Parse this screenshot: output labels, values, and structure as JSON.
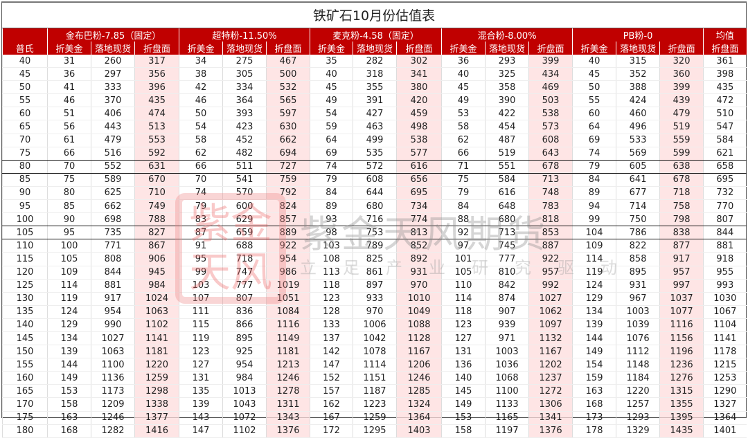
{
  "title": "铁矿石10月份估值表",
  "header": {
    "groups": [
      "金布巴粉-7.85（固定）",
      "超特粉-11.50%",
      "麦克粉-4.58（固定）",
      "混合粉-8.00%",
      "PB粉-0",
      "均值"
    ],
    "first_col": "普氏",
    "sub_cols": [
      "折美金",
      "落地现货",
      "折盘面"
    ],
    "avg_sub": "折盘面"
  },
  "colors": {
    "header_bg": "#c00000",
    "highlight": "#fde4e4"
  },
  "watermark": {
    "seal": "紫金天风",
    "name": "紫金天风期货",
    "slogan": "立足产业研究驱动"
  },
  "rows": [
    [
      "40",
      "31",
      "260",
      "317",
      "34",
      "275",
      "467",
      "35",
      "282",
      "302",
      "36",
      "293",
      "399",
      "40",
      "315",
      "320",
      "361"
    ],
    [
      "45",
      "36",
      "297",
      "356",
      "38",
      "305",
      "500",
      "40",
      "318",
      "341",
      "40",
      "325",
      "434",
      "45",
      "352",
      "360",
      "398"
    ],
    [
      "50",
      "41",
      "333",
      "396",
      "42",
      "334",
      "532",
      "45",
      "355",
      "380",
      "45",
      "358",
      "469",
      "50",
      "388",
      "399",
      "435"
    ],
    [
      "55",
      "46",
      "370",
      "435",
      "46",
      "364",
      "565",
      "49",
      "391",
      "420",
      "49",
      "390",
      "503",
      "55",
      "424",
      "439",
      "472"
    ],
    [
      "60",
      "51",
      "406",
      "474",
      "50",
      "393",
      "597",
      "54",
      "427",
      "459",
      "53",
      "422",
      "538",
      "60",
      "460",
      "479",
      "510"
    ],
    [
      "65",
      "56",
      "443",
      "513",
      "54",
      "423",
      "630",
      "59",
      "463",
      "498",
      "58",
      "454",
      "573",
      "64",
      "496",
      "519",
      "547"
    ],
    [
      "70",
      "61",
      "479",
      "553",
      "58",
      "452",
      "662",
      "64",
      "499",
      "538",
      "62",
      "487",
      "608",
      "69",
      "533",
      "559",
      "584"
    ],
    [
      "75",
      "66",
      "516",
      "592",
      "62",
      "482",
      "694",
      "69",
      "535",
      "577",
      "66",
      "519",
      "643",
      "74",
      "569",
      "599",
      "621"
    ],
    [
      "80",
      "70",
      "552",
      "631",
      "66",
      "511",
      "727",
      "74",
      "572",
      "616",
      "71",
      "551",
      "678",
      "79",
      "605",
      "638",
      "658"
    ],
    [
      "85",
      "75",
      "589",
      "670",
      "70",
      "541",
      "759",
      "79",
      "608",
      "656",
      "75",
      "584",
      "713",
      "84",
      "641",
      "678",
      "695"
    ],
    [
      "90",
      "80",
      "625",
      "710",
      "74",
      "570",
      "792",
      "84",
      "644",
      "695",
      "79",
      "616",
      "748",
      "89",
      "677",
      "718",
      "732"
    ],
    [
      "95",
      "85",
      "662",
      "749",
      "79",
      "600",
      "824",
      "89",
      "680",
      "734",
      "84",
      "648",
      "783",
      "94",
      "714",
      "758",
      "770"
    ],
    [
      "100",
      "90",
      "698",
      "788",
      "83",
      "629",
      "857",
      "93",
      "716",
      "774",
      "88",
      "680",
      "818",
      "99",
      "750",
      "798",
      "807"
    ],
    [
      "105",
      "95",
      "735",
      "827",
      "87",
      "659",
      "889",
      "98",
      "753",
      "813",
      "92",
      "713",
      "853",
      "104",
      "786",
      "838",
      "844"
    ],
    [
      "110",
      "100",
      "771",
      "867",
      "91",
      "688",
      "922",
      "103",
      "789",
      "852",
      "97",
      "745",
      "887",
      "109",
      "822",
      "877",
      "881"
    ],
    [
      "115",
      "105",
      "808",
      "906",
      "95",
      "718",
      "954",
      "108",
      "825",
      "892",
      "101",
      "777",
      "922",
      "114",
      "858",
      "917",
      "918"
    ],
    [
      "120",
      "109",
      "844",
      "945",
      "99",
      "747",
      "986",
      "113",
      "861",
      "931",
      "105",
      "810",
      "957",
      "119",
      "895",
      "957",
      "955"
    ],
    [
      "125",
      "114",
      "881",
      "984",
      "103",
      "777",
      "1019",
      "118",
      "897",
      "970",
      "110",
      "842",
      "992",
      "124",
      "931",
      "997",
      "993"
    ],
    [
      "130",
      "119",
      "917",
      "1024",
      "107",
      "807",
      "1051",
      "123",
      "933",
      "1010",
      "114",
      "874",
      "1027",
      "129",
      "967",
      "1037",
      "1030"
    ],
    [
      "135",
      "124",
      "954",
      "1063",
      "111",
      "836",
      "1084",
      "128",
      "970",
      "1049",
      "118",
      "907",
      "1062",
      "134",
      "1003",
      "1077",
      "1067"
    ],
    [
      "140",
      "129",
      "990",
      "1102",
      "115",
      "866",
      "1116",
      "133",
      "1006",
      "1088",
      "123",
      "939",
      "1097",
      "139",
      "1039",
      "1116",
      "1104"
    ],
    [
      "145",
      "134",
      "1027",
      "1141",
      "119",
      "895",
      "1149",
      "137",
      "1042",
      "1128",
      "127",
      "971",
      "1132",
      "144",
      "1076",
      "1156",
      "1141"
    ],
    [
      "150",
      "139",
      "1063",
      "1181",
      "123",
      "925",
      "1181",
      "142",
      "1078",
      "1167",
      "131",
      "1003",
      "1167",
      "149",
      "1112",
      "1196",
      "1178"
    ],
    [
      "155",
      "144",
      "1100",
      "1220",
      "127",
      "954",
      "1213",
      "147",
      "1114",
      "1206",
      "136",
      "1036",
      "1202",
      "154",
      "1148",
      "1236",
      "1215"
    ],
    [
      "160",
      "149",
      "1136",
      "1259",
      "131",
      "984",
      "1246",
      "152",
      "1151",
      "1246",
      "140",
      "1068",
      "1237",
      "159",
      "1184",
      "1276",
      "1253"
    ],
    [
      "165",
      "153",
      "1173",
      "1298",
      "135",
      "1013",
      "1278",
      "157",
      "1187",
      "1285",
      "145",
      "1100",
      "1272",
      "163",
      "1220",
      "1315",
      "1290"
    ],
    [
      "170",
      "158",
      "1209",
      "1338",
      "139",
      "1043",
      "1311",
      "162",
      "1223",
      "1324",
      "149",
      "1133",
      "1306",
      "168",
      "1257",
      "1355",
      "1327"
    ],
    [
      "175",
      "163",
      "1246",
      "1377",
      "143",
      "1072",
      "1343",
      "167",
      "1259",
      "1364",
      "153",
      "1165",
      "1341",
      "173",
      "1293",
      "1395",
      "1364"
    ],
    [
      "180",
      "168",
      "1282",
      "1416",
      "147",
      "1102",
      "1376",
      "172",
      "1295",
      "1403",
      "158",
      "1197",
      "1376",
      "178",
      "1329",
      "1435",
      "1401"
    ]
  ]
}
